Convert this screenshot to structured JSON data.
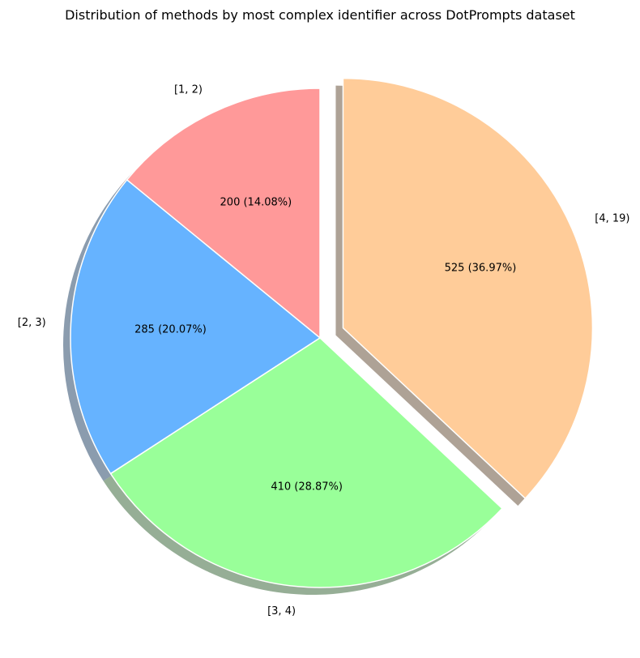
{
  "chart_data": {
    "type": "pie",
    "title": "Distribution of methods by most complex identifier across DotPrompts dataset",
    "categories": [
      "[1, 2)",
      "[2, 3)",
      "[3, 4)",
      "[4, 19)"
    ],
    "values": [
      200,
      285,
      410,
      525
    ],
    "value_labels": [
      "200 (14.08%)",
      "285 (20.07%)",
      "410 (28.87%)",
      "525 (36.97%)"
    ],
    "colors": [
      "#ff9999",
      "#66b3ff",
      "#99ff99",
      "#ffcc99"
    ],
    "exploded": [
      false,
      false,
      false,
      true
    ],
    "shadow": true,
    "start_angle_deg": 90,
    "direction": "counterclockwise",
    "legend": "none"
  }
}
